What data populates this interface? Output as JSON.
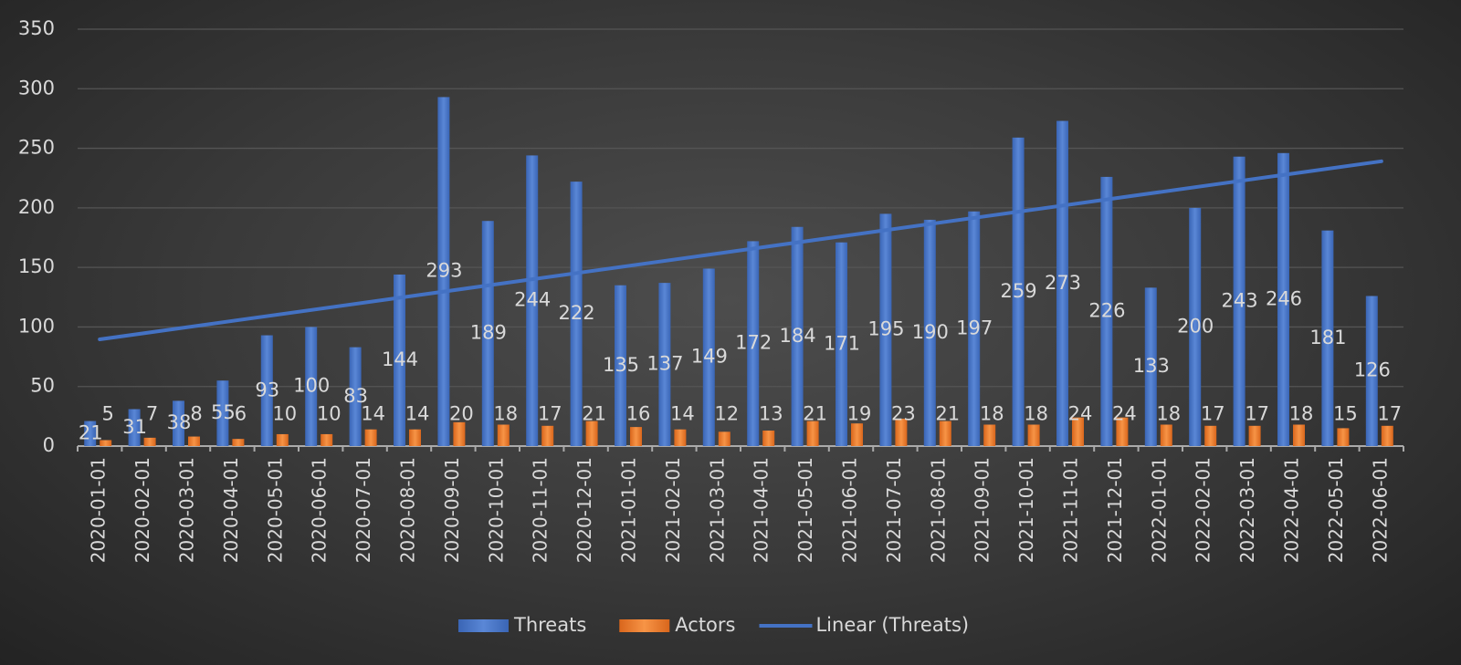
{
  "chart_data": {
    "type": "bar",
    "categories": [
      "2020-01-01",
      "2020-02-01",
      "2020-03-01",
      "2020-04-01",
      "2020-05-01",
      "2020-06-01",
      "2020-07-01",
      "2020-08-01",
      "2020-09-01",
      "2020-10-01",
      "2020-11-01",
      "2020-12-01",
      "2021-01-01",
      "2021-02-01",
      "2021-03-01",
      "2021-04-01",
      "2021-05-01",
      "2021-06-01",
      "2021-07-01",
      "2021-08-01",
      "2021-09-01",
      "2021-10-01",
      "2021-11-01",
      "2021-12-01",
      "2022-01-01",
      "2022-02-01",
      "2022-03-01",
      "2022-04-01",
      "2022-05-01",
      "2022-06-01"
    ],
    "series": [
      {
        "name": "Threats",
        "color": "#4472c4",
        "trendline": "linear",
        "trendline_name": "Linear (Threats)",
        "values": [
          21,
          31,
          38,
          55,
          93,
          100,
          83,
          144,
          293,
          189,
          244,
          222,
          135,
          137,
          149,
          172,
          184,
          171,
          195,
          190,
          197,
          259,
          273,
          226,
          133,
          200,
          243,
          246,
          181,
          126
        ]
      },
      {
        "name": "Actors",
        "color": "#ed7d31",
        "values": [
          5,
          7,
          8,
          6,
          10,
          10,
          14,
          14,
          20,
          18,
          17,
          21,
          16,
          14,
          12,
          13,
          21,
          19,
          23,
          21,
          18,
          18,
          24,
          24,
          18,
          17,
          17,
          18,
          15,
          17
        ]
      }
    ],
    "ylim": [
      0,
      350
    ],
    "yticks": [
      0,
      50,
      100,
      150,
      200,
      250,
      300,
      350
    ],
    "grid": true,
    "legend": "bottom"
  }
}
